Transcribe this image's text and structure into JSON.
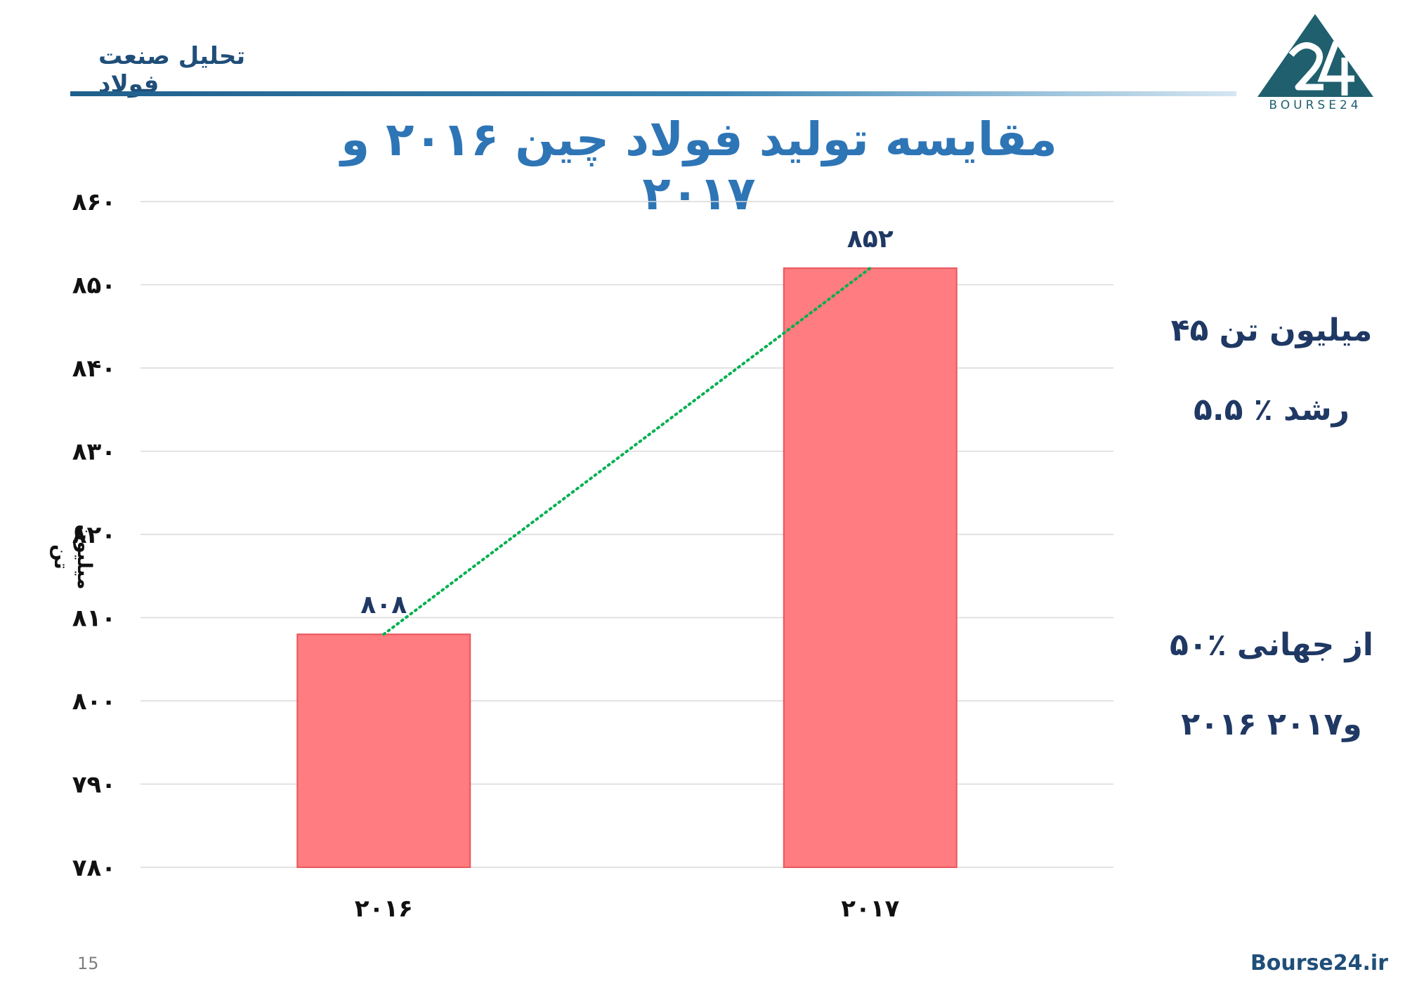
{
  "header": {
    "brand": "تحلیل صنعت فولاد",
    "logo_text": "BOURSE24"
  },
  "chart_data": {
    "type": "bar",
    "title": "مقایسه تولید فولاد چین ۲۰۱۶ و ۲۰۱۷",
    "ylabel": "میلیون تن",
    "xlabel": "",
    "categories": [
      "۲۰۱۶",
      "۲۰۱۷"
    ],
    "values": [
      808,
      852
    ],
    "data_labels": [
      "۸۰۸",
      "۸۵۲"
    ],
    "ylim": [
      780,
      860
    ],
    "yticks": [
      780,
      790,
      800,
      810,
      820,
      830,
      840,
      850,
      860
    ],
    "ytick_labels": [
      "۷۸۰",
      "۷۹۰",
      "۸۰۰",
      "۸۱۰",
      "۸۲۰",
      "۸۳۰",
      "۸۴۰",
      "۸۵۰",
      "۸۶۰"
    ],
    "grid": true,
    "trendline": true,
    "colors": {
      "bar": "#ff7c80",
      "bar_border": "#e8575c",
      "trendline": "#00b050",
      "grid": "#d9d9d9"
    }
  },
  "notes": {
    "growth_amount": "میلیون تن ۴۵",
    "growth_percent": "رشد ٪ ۵.۵",
    "world_share": "از جهانی ٪۵۰",
    "years": "و۲۰۱۷ ۲۰۱۶"
  },
  "footer": {
    "page_number": "15",
    "url": "Bourse24.ir"
  }
}
